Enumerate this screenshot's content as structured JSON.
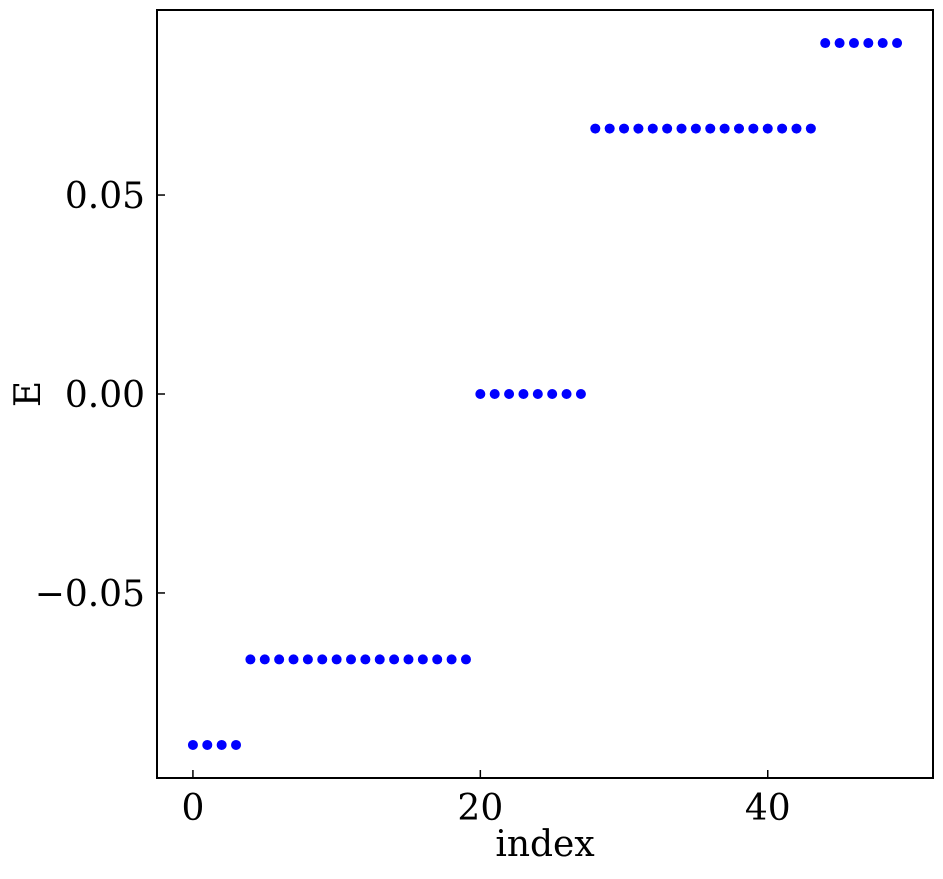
{
  "chart_data": {
    "type": "scatter",
    "title": "",
    "xlabel": "index",
    "ylabel": "E",
    "xlim": [
      -2.5,
      51.5
    ],
    "ylim": [
      -0.0965,
      0.0965
    ],
    "xticks": [
      0,
      20,
      40
    ],
    "xtick_labels": [
      "0",
      "20",
      "40"
    ],
    "yticks": [
      -0.05,
      0.0,
      0.05
    ],
    "ytick_labels": [
      "−0.05",
      "0.00",
      "0.05"
    ],
    "grid": false,
    "legend": "none",
    "marker_color": "#0000ff",
    "series": [
      {
        "x": [
          0,
          1,
          2,
          3,
          4,
          5,
          6,
          7,
          8,
          9,
          10,
          11,
          12,
          13,
          14,
          15,
          16,
          17,
          18,
          19,
          20,
          21,
          22,
          23,
          24,
          25,
          26,
          27,
          28,
          29,
          30,
          31,
          32,
          33,
          34,
          35,
          36,
          37,
          38,
          39,
          40,
          41,
          42,
          43,
          44,
          45,
          46,
          47,
          48,
          49
        ],
        "y": [
          -0.0882,
          -0.0882,
          -0.0882,
          -0.0882,
          -0.0667,
          -0.0667,
          -0.0667,
          -0.0667,
          -0.0667,
          -0.0667,
          -0.0667,
          -0.0667,
          -0.0667,
          -0.0667,
          -0.0667,
          -0.0667,
          -0.0667,
          -0.0667,
          -0.0667,
          -0.0667,
          0.0,
          0.0,
          0.0,
          0.0,
          0.0,
          0.0,
          0.0,
          0.0,
          0.0667,
          0.0667,
          0.0667,
          0.0667,
          0.0667,
          0.0667,
          0.0667,
          0.0667,
          0.0667,
          0.0667,
          0.0667,
          0.0667,
          0.0667,
          0.0667,
          0.0667,
          0.0667,
          0.0882,
          0.0882,
          0.0882,
          0.0882,
          0.0882,
          0.0882
        ]
      }
    ]
  }
}
